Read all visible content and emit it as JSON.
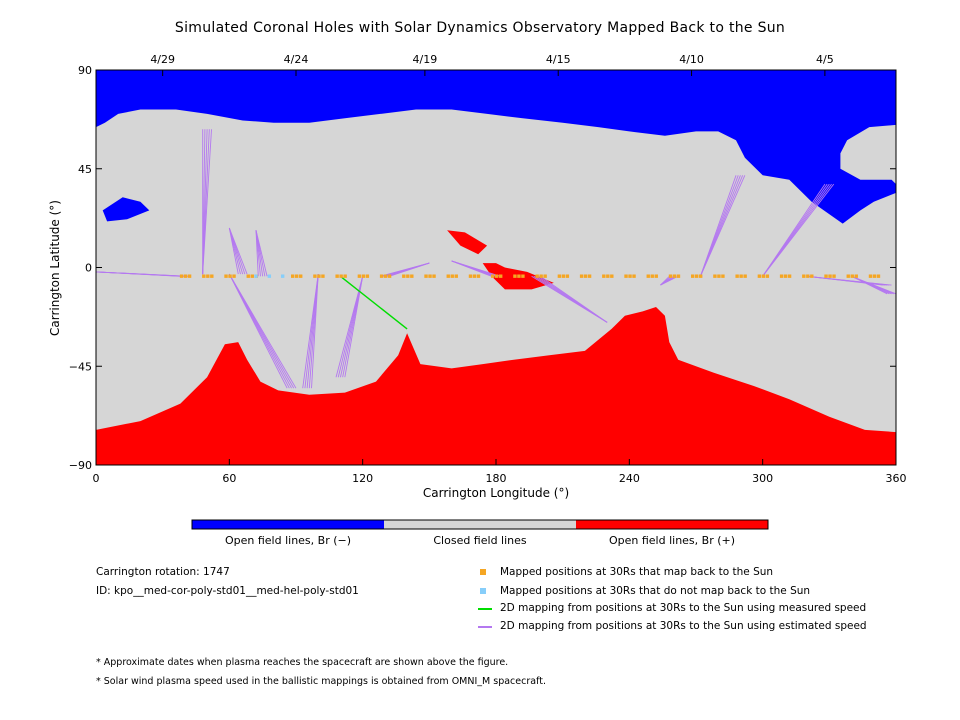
{
  "chart_data": {
    "type": "heatmap",
    "title": "Simulated Coronal Holes with Solar Dynamics Observatory Mapped Back to the Sun",
    "xlabel": "Carrington Longitude (°)",
    "ylabel": "Carrington Latitude (°)",
    "xlim": [
      0,
      360
    ],
    "ylim": [
      -90,
      90
    ],
    "x_ticks": [
      0,
      60,
      120,
      180,
      240,
      300,
      360
    ],
    "y_ticks": [
      90,
      45,
      0,
      -45,
      -90
    ],
    "top_axis": {
      "labels": [
        "4/29",
        "4/24",
        "4/19",
        "4/15",
        "4/10",
        "4/5"
      ],
      "longitudes": [
        30,
        90,
        148,
        208,
        268,
        328
      ]
    },
    "colors": {
      "open_negative": "#0000ff",
      "closed": "#d6d6d6",
      "open_positive": "#ff0000",
      "mapped": "#f5a623",
      "not_mapped": "#87cefa",
      "measured_speed": "#00dd00",
      "estimated_speed": "#b478f0"
    },
    "regions": {
      "open_negative": [
        [
          [
            0,
            90
          ],
          [
            360,
            90
          ],
          [
            360,
            65
          ],
          [
            348,
            64
          ],
          [
            338,
            58
          ],
          [
            335,
            52
          ],
          [
            335,
            45
          ],
          [
            344,
            40
          ],
          [
            358,
            40
          ],
          [
            360,
            38
          ],
          [
            360,
            34
          ],
          [
            350,
            30
          ],
          [
            344,
            26
          ],
          [
            336,
            20
          ],
          [
            322,
            30
          ],
          [
            312,
            40
          ],
          [
            300,
            42
          ],
          [
            292,
            50
          ],
          [
            288,
            58
          ],
          [
            280,
            62
          ],
          [
            270,
            62
          ],
          [
            256,
            60
          ],
          [
            240,
            62
          ],
          [
            226,
            64
          ],
          [
            210,
            66
          ],
          [
            192,
            68
          ],
          [
            176,
            70
          ],
          [
            160,
            72
          ],
          [
            144,
            72
          ],
          [
            128,
            70
          ],
          [
            112,
            68
          ],
          [
            96,
            66
          ],
          [
            80,
            66
          ],
          [
            66,
            67
          ],
          [
            50,
            70
          ],
          [
            36,
            72
          ],
          [
            20,
            72
          ],
          [
            10,
            70
          ],
          [
            4,
            66
          ],
          [
            0,
            64
          ]
        ],
        [
          [
            3,
            26
          ],
          [
            12,
            32
          ],
          [
            20,
            30
          ],
          [
            24,
            26
          ],
          [
            14,
            22
          ],
          [
            5,
            21
          ]
        ]
      ],
      "closed_islands": [
        [
          [
            214,
            45
          ],
          [
            218,
            50
          ],
          [
            228,
            52
          ],
          [
            232,
            48
          ],
          [
            230,
            40
          ],
          [
            222,
            36
          ],
          [
            215,
            39
          ]
        ],
        [
          [
            357,
            -33
          ],
          [
            360,
            -33
          ],
          [
            360,
            -43
          ],
          [
            356,
            -40
          ]
        ]
      ],
      "open_positive": [
        [
          [
            0,
            -74
          ],
          [
            20,
            -70
          ],
          [
            38,
            -62
          ],
          [
            50,
            -50
          ],
          [
            58,
            -35
          ],
          [
            64,
            -34
          ],
          [
            68,
            -42
          ],
          [
            74,
            -52
          ],
          [
            82,
            -56
          ],
          [
            96,
            -58
          ],
          [
            112,
            -57
          ],
          [
            126,
            -52
          ],
          [
            136,
            -40
          ],
          [
            140,
            -30
          ],
          [
            146,
            -44
          ],
          [
            160,
            -46
          ],
          [
            174,
            -44
          ],
          [
            188,
            -42
          ],
          [
            204,
            -40
          ],
          [
            220,
            -38
          ],
          [
            232,
            -28
          ],
          [
            238,
            -22
          ],
          [
            246,
            -20
          ],
          [
            252,
            -18
          ],
          [
            256,
            -22
          ],
          [
            258,
            -34
          ],
          [
            262,
            -42
          ],
          [
            278,
            -48
          ],
          [
            296,
            -54
          ],
          [
            312,
            -60
          ],
          [
            330,
            -68
          ],
          [
            346,
            -74
          ],
          [
            360,
            -75
          ],
          [
            360,
            -90
          ],
          [
            0,
            -90
          ]
        ],
        [
          [
            158,
            17
          ],
          [
            164,
            10
          ],
          [
            172,
            6
          ],
          [
            176,
            10
          ],
          [
            166,
            16
          ]
        ],
        [
          [
            174,
            2
          ],
          [
            178,
            -4
          ],
          [
            184,
            -10
          ],
          [
            196,
            -10
          ],
          [
            206,
            -7
          ],
          [
            194,
            -2
          ],
          [
            184,
            0
          ],
          [
            180,
            2
          ]
        ]
      ]
    },
    "footpoints_lat": -4,
    "mapped_positions_lon": [
      40,
      50,
      60,
      70,
      90,
      100,
      110,
      120,
      130,
      140,
      150,
      160,
      170,
      180,
      190,
      200,
      210,
      220,
      230,
      240,
      250,
      260,
      270,
      280,
      290,
      300,
      310,
      320,
      330,
      340,
      350
    ],
    "not_mapped_positions_lon": [
      72,
      78,
      84
    ],
    "measured_speed_mapping": [
      [
        110,
        -4
      ],
      [
        140,
        -28
      ]
    ],
    "estimated_speed_mappings": [
      [
        [
          0,
          -2
        ],
        [
          40,
          -4
        ]
      ],
      [
        [
          48,
          -3
        ],
        [
          50,
          63
        ]
      ],
      [
        [
          60,
          18
        ],
        [
          66,
          -3
        ]
      ],
      [
        [
          72,
          17
        ],
        [
          75,
          -4
        ]
      ],
      [
        [
          60,
          -3
        ],
        [
          88,
          -55
        ]
      ],
      [
        [
          100,
          -3
        ],
        [
          95,
          -55
        ]
      ],
      [
        [
          120,
          -4
        ],
        [
          110,
          -50
        ]
      ],
      [
        [
          150,
          2
        ],
        [
          130,
          -4
        ]
      ],
      [
        [
          160,
          3
        ],
        [
          180,
          -4
        ]
      ],
      [
        [
          230,
          -25
        ],
        [
          198,
          -4
        ]
      ],
      [
        [
          254,
          -8
        ],
        [
          260,
          -4
        ]
      ],
      [
        [
          272,
          -4
        ],
        [
          290,
          42
        ]
      ],
      [
        [
          300,
          -4
        ],
        [
          330,
          38
        ]
      ],
      [
        [
          320,
          -4
        ],
        [
          356,
          -8
        ]
      ],
      [
        [
          340,
          -4
        ],
        [
          358,
          -12
        ]
      ]
    ],
    "colorbar": {
      "labels": [
        "Open field lines, Br (−)",
        "Closed field lines",
        "Open field lines, Br (+)"
      ]
    },
    "legend": [
      {
        "marker": "square",
        "color": "#f5a623",
        "label": "Mapped positions at 30Rs that map back to the Sun"
      },
      {
        "marker": "square",
        "color": "#87cefa",
        "label": "Mapped positions at 30Rs that do not map back to the Sun"
      },
      {
        "marker": "line",
        "color": "#00dd00",
        "label": "2D mapping from positions at 30Rs to the Sun using measured speed"
      },
      {
        "marker": "line",
        "color": "#b478f0",
        "label": "2D mapping from positions at 30Rs to the Sun using estimated speed"
      }
    ]
  },
  "info": {
    "rotation": "Carrington rotation: 1747",
    "id": "ID: kpo__med-cor-poly-std01__med-hel-poly-std01"
  },
  "notes": [
    "* Approximate dates when plasma reaches the spacecraft are shown above the figure.",
    "* Solar wind plasma speed used in the ballistic mappings is obtained from OMNI_M spacecraft."
  ]
}
